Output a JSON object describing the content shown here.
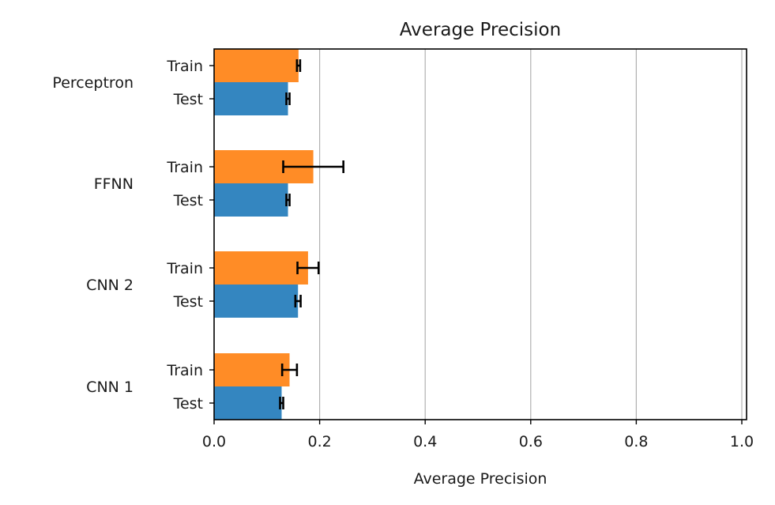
{
  "chart_data": {
    "type": "bar",
    "orientation": "horizontal",
    "title": "Average Precision",
    "xlabel": "Average Precision",
    "ylabel": "",
    "xlim": [
      0.0,
      1.0
    ],
    "x_ticks": [
      "0.0",
      "0.2",
      "0.4",
      "0.6",
      "0.8",
      "1.0"
    ],
    "grid": "vertical",
    "groups": [
      "Perceptron",
      "FFNN",
      "CNN 2",
      "CNN 1"
    ],
    "bar_labels": [
      "Train",
      "Test"
    ],
    "series": [
      {
        "name": "Train",
        "color": "#ff8c26",
        "values": [
          0.16,
          0.188,
          0.178,
          0.143
        ],
        "error": [
          0.003,
          0.057,
          0.02,
          0.014
        ]
      },
      {
        "name": "Test",
        "color": "#3486c0",
        "values": [
          0.14,
          0.14,
          0.159,
          0.128
        ],
        "error": [
          0.003,
          0.003,
          0.005,
          0.003
        ]
      }
    ]
  }
}
